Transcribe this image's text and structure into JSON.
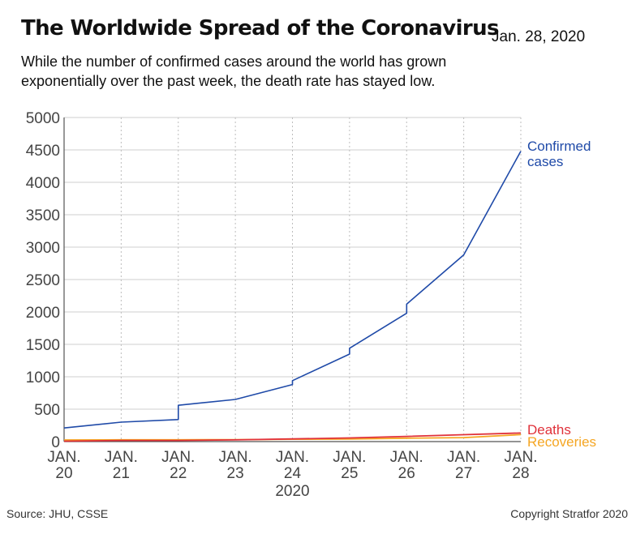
{
  "header": {
    "title": "The Worldwide Spread of the Coronavirus",
    "date": "Jan. 28, 2020",
    "subtitle": "While the number of confirmed cases around the world has grown exponentially over the past week, the death rate has stayed low."
  },
  "footer": {
    "source": "Source: JHU, CSSE",
    "copyright": "Copyright Stratfor 2020"
  },
  "chart_data": {
    "type": "line",
    "title": "The Worldwide Spread of the Coronavirus",
    "subtitle": "While the number of confirmed cases around the world has grown exponentially over the past week, the death rate has stayed low.",
    "xlabel": "2020",
    "ylabel": "",
    "x_ticks": [
      {
        "line1": "JAN.",
        "line2": "20"
      },
      {
        "line1": "JAN.",
        "line2": "21"
      },
      {
        "line1": "JAN.",
        "line2": "22"
      },
      {
        "line1": "JAN.",
        "line2": "23"
      },
      {
        "line1": "JAN.",
        "line2": "24"
      },
      {
        "line1": "JAN.",
        "line2": "25"
      },
      {
        "line1": "JAN.",
        "line2": "26"
      },
      {
        "line1": "JAN.",
        "line2": "27"
      },
      {
        "line1": "JAN.",
        "line2": "28"
      }
    ],
    "x_year_label": "2020",
    "xlim": [
      20,
      28
    ],
    "ylim": [
      0,
      5000
    ],
    "y_ticks": [
      0,
      500,
      1000,
      1500,
      2000,
      2500,
      3000,
      3500,
      4000,
      4500,
      5000
    ],
    "grid": {
      "horizontal": true,
      "vertical_dotted": true
    },
    "series": [
      {
        "name": "Confirmed cases",
        "label_lines": [
          "Confirmed",
          "cases"
        ],
        "color": "#1f4aa8",
        "points": [
          [
            20,
            210
          ],
          [
            21,
            300
          ],
          [
            22,
            340
          ],
          [
            22,
            560
          ],
          [
            23,
            650
          ],
          [
            24,
            880
          ],
          [
            24,
            940
          ],
          [
            25,
            1350
          ],
          [
            25,
            1440
          ],
          [
            26,
            1980
          ],
          [
            26,
            2120
          ],
          [
            27,
            2880
          ],
          [
            28,
            4480
          ]
        ]
      },
      {
        "name": "Deaths",
        "label_lines": [
          "Deaths"
        ],
        "color": "#e0313a",
        "points": [
          [
            20,
            6
          ],
          [
            21,
            17
          ],
          [
            22,
            18
          ],
          [
            23,
            26
          ],
          [
            24,
            41
          ],
          [
            25,
            56
          ],
          [
            26,
            80
          ],
          [
            27,
            106
          ],
          [
            28,
            132
          ]
        ]
      },
      {
        "name": "Recoveries",
        "label_lines": [
          "Recoveries"
        ],
        "color": "#f5a623",
        "points": [
          [
            20,
            25
          ],
          [
            21,
            28
          ],
          [
            22,
            28
          ],
          [
            23,
            30
          ],
          [
            24,
            36
          ],
          [
            25,
            39
          ],
          [
            26,
            52
          ],
          [
            27,
            61
          ],
          [
            28,
            107
          ]
        ]
      }
    ]
  }
}
